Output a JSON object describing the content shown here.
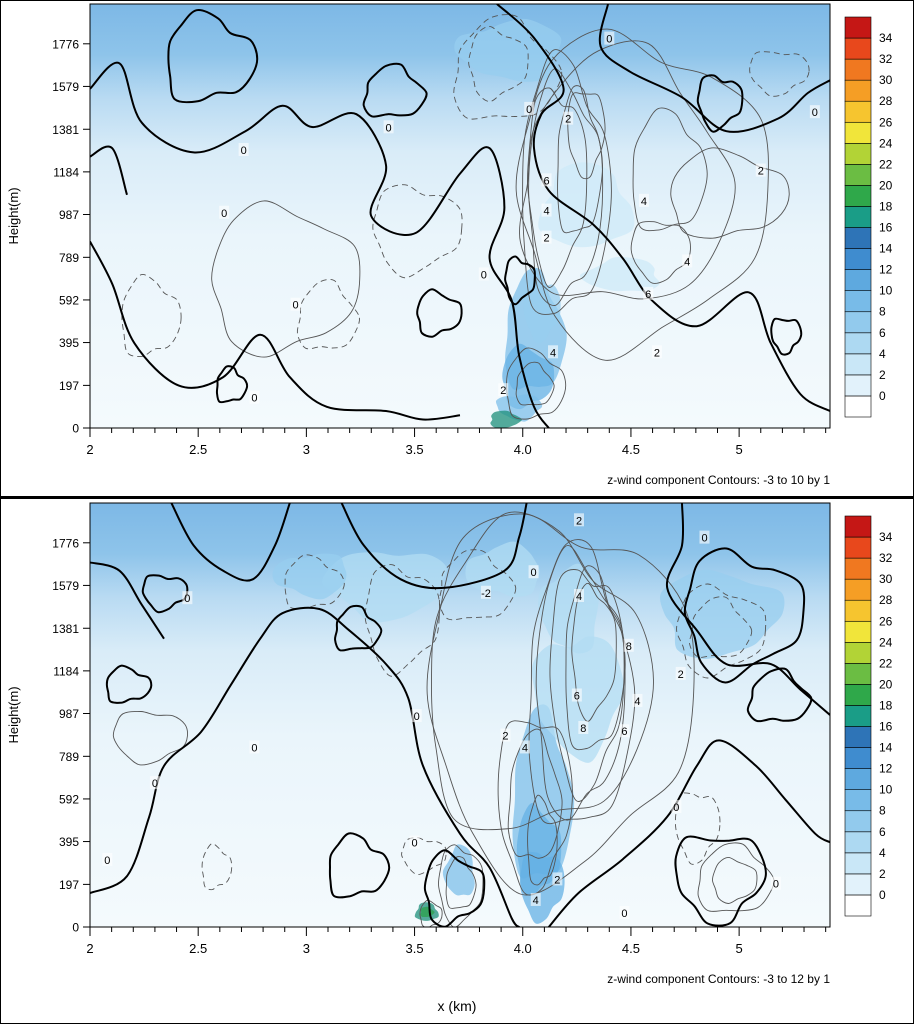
{
  "chart_data": [
    {
      "type": "heatmap",
      "ylabel": "Height(m)",
      "xlabel": "",
      "caption": "z-wind component Contours: -3 to 10 by 1",
      "x_ticks": [
        "2",
        "2.5",
        "3",
        "3.5",
        "4.0",
        "4.5",
        "5"
      ],
      "x_tick_values": [
        2.0,
        2.5,
        3.0,
        3.5,
        4.0,
        4.5,
        5.0
      ],
      "y_ticks": [
        "0",
        "197",
        "395",
        "592",
        "789",
        "987",
        "1184",
        "1381",
        "1579",
        "1776"
      ],
      "y_tick_values": [
        0,
        197,
        395,
        592,
        789,
        987,
        1184,
        1381,
        1579,
        1776
      ],
      "xlim": [
        2.0,
        5.42
      ],
      "ylim": [
        0,
        1960
      ],
      "colorbar_labels": [
        "0",
        "2",
        "4",
        "6",
        "8",
        "10",
        "12",
        "14",
        "16",
        "18",
        "20",
        "22",
        "24",
        "26",
        "28",
        "30",
        "32",
        "34"
      ],
      "contour_range": [
        -3,
        10
      ],
      "contour_interval": 1,
      "contour_labels": [
        {
          "text": "0",
          "x": 4.4,
          "y": 1800
        },
        {
          "text": "0",
          "x": 4.03,
          "y": 1475
        },
        {
          "text": "0",
          "x": 5.35,
          "y": 1460
        },
        {
          "text": "0",
          "x": 3.38,
          "y": 1390
        },
        {
          "text": "0",
          "x": 2.71,
          "y": 1285
        },
        {
          "text": "0",
          "x": 2.62,
          "y": 995
        },
        {
          "text": "0",
          "x": 3.82,
          "y": 710
        },
        {
          "text": "0",
          "x": 2.95,
          "y": 570
        },
        {
          "text": "0",
          "x": 2.76,
          "y": 140
        },
        {
          "text": "2",
          "x": 4.21,
          "y": 1430
        },
        {
          "text": "2",
          "x": 5.1,
          "y": 1190
        },
        {
          "text": "2",
          "x": 4.11,
          "y": 880
        },
        {
          "text": "2",
          "x": 4.62,
          "y": 350
        },
        {
          "text": "2",
          "x": 3.91,
          "y": 175
        },
        {
          "text": "6",
          "x": 4.11,
          "y": 1145
        },
        {
          "text": "4",
          "x": 4.11,
          "y": 1005
        },
        {
          "text": "4",
          "x": 4.56,
          "y": 1050
        },
        {
          "text": "4",
          "x": 4.76,
          "y": 770
        },
        {
          "text": "6",
          "x": 4.58,
          "y": 620
        },
        {
          "text": "4",
          "x": 4.14,
          "y": 350
        }
      ]
    },
    {
      "type": "heatmap",
      "ylabel": "Height(m)",
      "xlabel": "x (km)",
      "caption": "z-wind component Contours: -3 to 12 by 1",
      "x_ticks": [
        "2",
        "2.5",
        "3",
        "3.5",
        "4.0",
        "4.5",
        "5"
      ],
      "x_tick_values": [
        2.0,
        2.5,
        3.0,
        3.5,
        4.0,
        4.5,
        5.0
      ],
      "y_ticks": [
        "0",
        "197",
        "395",
        "592",
        "789",
        "987",
        "1184",
        "1381",
        "1579",
        "1776"
      ],
      "y_tick_values": [
        0,
        197,
        395,
        592,
        789,
        987,
        1184,
        1381,
        1579,
        1776
      ],
      "xlim": [
        2.0,
        5.42
      ],
      "ylim": [
        0,
        1960
      ],
      "colorbar_labels": [
        "0",
        "2",
        "4",
        "6",
        "8",
        "10",
        "12",
        "14",
        "16",
        "18",
        "20",
        "22",
        "24",
        "26",
        "28",
        "30",
        "32",
        "34"
      ],
      "contour_range": [
        -3,
        12
      ],
      "contour_interval": 1,
      "contour_labels": [
        {
          "text": "2",
          "x": 4.26,
          "y": 1880
        },
        {
          "text": "0",
          "x": 4.84,
          "y": 1800
        },
        {
          "text": "0",
          "x": 4.05,
          "y": 1640
        },
        {
          "text": "-2",
          "x": 3.83,
          "y": 1545
        },
        {
          "text": "4",
          "x": 4.26,
          "y": 1530
        },
        {
          "text": "0",
          "x": 2.45,
          "y": 1520
        },
        {
          "text": "8",
          "x": 4.49,
          "y": 1300
        },
        {
          "text": "2",
          "x": 4.73,
          "y": 1170
        },
        {
          "text": "6",
          "x": 4.25,
          "y": 1070
        },
        {
          "text": "4",
          "x": 4.53,
          "y": 1045
        },
        {
          "text": "8",
          "x": 4.28,
          "y": 920
        },
        {
          "text": "6",
          "x": 4.47,
          "y": 905
        },
        {
          "text": "0",
          "x": 3.51,
          "y": 975
        },
        {
          "text": "2",
          "x": 3.92,
          "y": 885
        },
        {
          "text": "4",
          "x": 4.01,
          "y": 830
        },
        {
          "text": "0",
          "x": 2.76,
          "y": 830
        },
        {
          "text": "0",
          "x": 2.3,
          "y": 665
        },
        {
          "text": "0",
          "x": 4.71,
          "y": 555
        },
        {
          "text": "0",
          "x": 3.5,
          "y": 390
        },
        {
          "text": "0",
          "x": 2.08,
          "y": 310
        },
        {
          "text": "2",
          "x": 4.16,
          "y": 220
        },
        {
          "text": "0",
          "x": 5.17,
          "y": 200
        },
        {
          "text": "4",
          "x": 4.06,
          "y": 125
        },
        {
          "text": "0",
          "x": 4.47,
          "y": 65
        }
      ]
    }
  ]
}
